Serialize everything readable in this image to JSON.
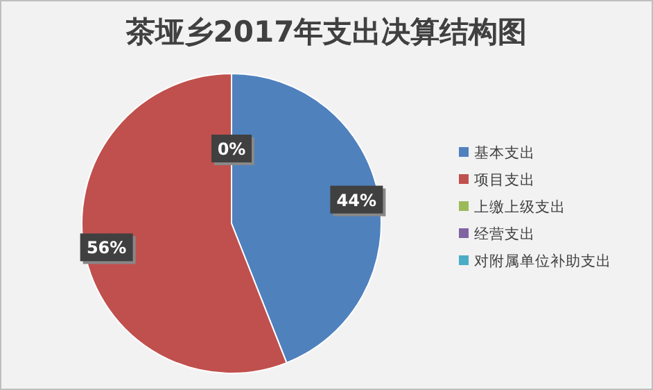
{
  "chart_data": {
    "type": "pie",
    "title": "茶垭乡2017年支出决算结构图",
    "categories": [
      "基本支出",
      "项目支出",
      "上缴上级支出",
      "经营支出",
      "对附属单位补助支出"
    ],
    "values": [
      44,
      56,
      0,
      0,
      0
    ],
    "colors": [
      "#4f81bd",
      "#c0504d",
      "#9bbb59",
      "#8064a2",
      "#4bacc6"
    ],
    "value_labels": [
      "44%",
      "56%",
      "0%",
      null,
      null
    ],
    "legend": "right"
  }
}
